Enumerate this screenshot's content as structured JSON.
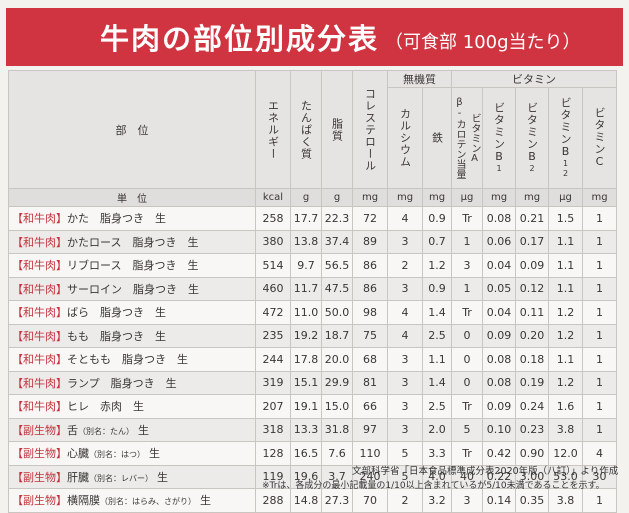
{
  "title": {
    "main": "牛肉の部位別成分表",
    "sub": "（可食部 100g当たり）"
  },
  "headers": {
    "part": "部　位",
    "energy": "エネルギー",
    "protein": "たんぱく質",
    "fat": "脂質",
    "cholesterol": "コレステロール",
    "minerals": "無機質",
    "calcium": "カルシウム",
    "iron": "鉄",
    "vitamins": "ビタミン",
    "vitA": "ビタミンA",
    "vitA_sub": "β-カロテン当量",
    "vitB1": "ビタミンB",
    "vitB1_sub": "1",
    "vitB2": "ビタミンB",
    "vitB2_sub": "2",
    "vitB12": "ビタミンB",
    "vitB12_sub": "12",
    "vitC": "ビタミンC"
  },
  "units": [
    "単　位",
    "kcal",
    "g",
    "g",
    "mg",
    "mg",
    "mg",
    "μg",
    "mg",
    "mg",
    "μg",
    "mg"
  ],
  "rows": [
    {
      "tag": "【和牛肉】",
      "name": "かた　脂身つき　生",
      "note": "",
      "values": [
        "258",
        "17.7",
        "22.3",
        "72",
        "4",
        "0.9",
        "Tr",
        "0.08",
        "0.21",
        "1.5",
        "1"
      ]
    },
    {
      "tag": "【和牛肉】",
      "name": "かたロース　脂身つき　生",
      "note": "",
      "values": [
        "380",
        "13.8",
        "37.4",
        "89",
        "3",
        "0.7",
        "1",
        "0.06",
        "0.17",
        "1.1",
        "1"
      ]
    },
    {
      "tag": "【和牛肉】",
      "name": "リブロース　脂身つき　生",
      "note": "",
      "values": [
        "514",
        "9.7",
        "56.5",
        "86",
        "2",
        "1.2",
        "3",
        "0.04",
        "0.09",
        "1.1",
        "1"
      ]
    },
    {
      "tag": "【和牛肉】",
      "name": "サーロイン　脂身つき　生",
      "note": "",
      "values": [
        "460",
        "11.7",
        "47.5",
        "86",
        "3",
        "0.9",
        "1",
        "0.05",
        "0.12",
        "1.1",
        "1"
      ]
    },
    {
      "tag": "【和牛肉】",
      "name": "ばら　脂身つき　生",
      "note": "",
      "values": [
        "472",
        "11.0",
        "50.0",
        "98",
        "4",
        "1.4",
        "Tr",
        "0.04",
        "0.11",
        "1.2",
        "1"
      ]
    },
    {
      "tag": "【和牛肉】",
      "name": "もも　脂身つき　生",
      "note": "",
      "values": [
        "235",
        "19.2",
        "18.7",
        "75",
        "4",
        "2.5",
        "0",
        "0.09",
        "0.20",
        "1.2",
        "1"
      ]
    },
    {
      "tag": "【和牛肉】",
      "name": "そともも　脂身つき　生",
      "note": "",
      "values": [
        "244",
        "17.8",
        "20.0",
        "68",
        "3",
        "1.1",
        "0",
        "0.08",
        "0.18",
        "1.1",
        "1"
      ]
    },
    {
      "tag": "【和牛肉】",
      "name": "ランプ　脂身つき　生",
      "note": "",
      "values": [
        "319",
        "15.1",
        "29.9",
        "81",
        "3",
        "1.4",
        "0",
        "0.08",
        "0.19",
        "1.2",
        "1"
      ]
    },
    {
      "tag": "【和牛肉】",
      "name": "ヒレ　赤肉　生",
      "note": "",
      "values": [
        "207",
        "19.1",
        "15.0",
        "66",
        "3",
        "2.5",
        "Tr",
        "0.09",
        "0.24",
        "1.6",
        "1"
      ]
    },
    {
      "tag": "【副生物】",
      "name": "舌",
      "note": "（別名：たん）",
      "tail": "生",
      "values": [
        "318",
        "13.3",
        "31.8",
        "97",
        "3",
        "2.0",
        "5",
        "0.10",
        "0.23",
        "3.8",
        "1"
      ]
    },
    {
      "tag": "【副生物】",
      "name": "心臓",
      "note": "（別名：はつ）",
      "tail": "生",
      "values": [
        "128",
        "16.5",
        "7.6",
        "110",
        "5",
        "3.3",
        "Tr",
        "0.42",
        "0.90",
        "12.0",
        "4"
      ]
    },
    {
      "tag": "【副生物】",
      "name": "肝臓",
      "note": "（別名：レバー）",
      "tail": "生",
      "values": [
        "119",
        "19.6",
        "3.7",
        "240",
        "5",
        "4.0",
        "40",
        "0.22",
        "3.00",
        "53.0",
        "30"
      ]
    },
    {
      "tag": "【副生物】",
      "name": "横隔膜",
      "note": "（別名：はらみ、さがり）",
      "tail": "生",
      "values": [
        "288",
        "14.8",
        "27.3",
        "70",
        "2",
        "3.2",
        "3",
        "0.14",
        "0.35",
        "3.8",
        "1"
      ]
    }
  ],
  "footer": {
    "source": "文部科学省「日本食品標準成分表2020年版（八訂）」より作成",
    "note": "※Trは、各成分の最小記載量の1/10以上含まれているが5/10未満であることを示す。"
  }
}
